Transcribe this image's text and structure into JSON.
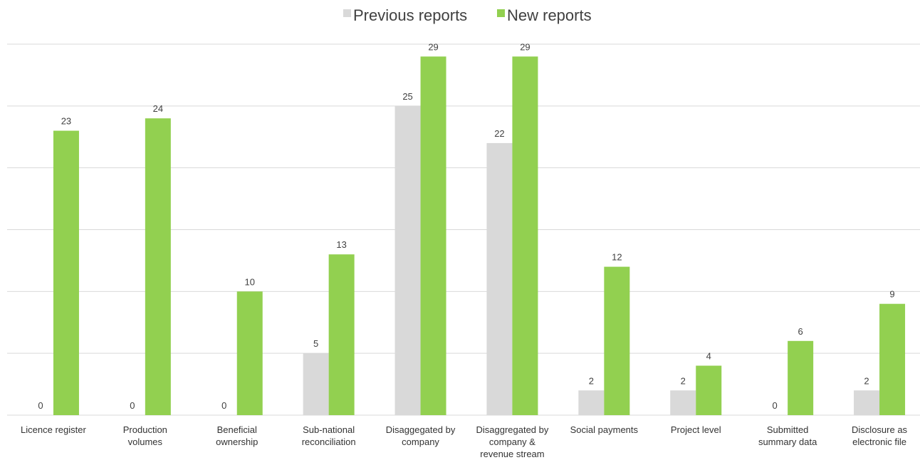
{
  "chart_data": {
    "type": "bar",
    "title": "",
    "xlabel": "",
    "ylabel": "",
    "ylim": [
      0,
      30
    ],
    "grid": true,
    "legend_position": "top",
    "categories": [
      [
        "Licence register"
      ],
      [
        "Production",
        "volumes"
      ],
      [
        "Beneficial",
        "ownership"
      ],
      [
        "Sub-national",
        "reconciliation"
      ],
      [
        "Disaggegated by",
        "company"
      ],
      [
        "Disaggregated by",
        "company &",
        "revenue stream"
      ],
      [
        "Social payments"
      ],
      [
        "Project level"
      ],
      [
        "Submitted",
        "summary data"
      ],
      [
        "Disclosure as",
        "electronic file"
      ]
    ],
    "series": [
      {
        "name": "Previous reports",
        "color": "#d9d9d9",
        "values": [
          0,
          0,
          0,
          5,
          25,
          22,
          2,
          2,
          0,
          2
        ]
      },
      {
        "name": "New reports",
        "color": "#92d050",
        "values": [
          23,
          24,
          10,
          13,
          29,
          29,
          12,
          4,
          6,
          9
        ]
      }
    ]
  }
}
